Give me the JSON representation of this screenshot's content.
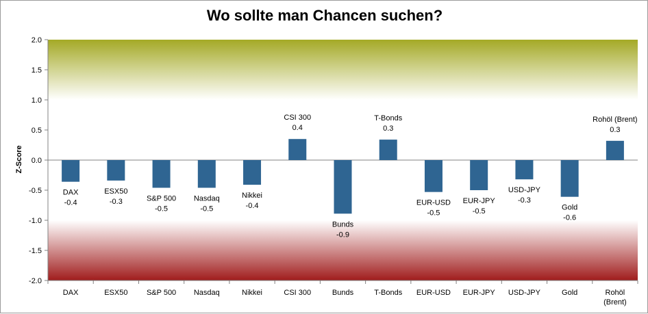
{
  "chart_data": {
    "type": "bar",
    "title": "Wo sollte man Chancen suchen?",
    "xlabel": "",
    "ylabel": "Z-Score",
    "ylim": [
      -2.0,
      2.0
    ],
    "yticks": [
      "2.0",
      "1.5",
      "1.0",
      "0.5",
      "0.0",
      "-0.5",
      "-1.0",
      "-1.5",
      "-2.0"
    ],
    "categories": [
      "DAX",
      "ESX50",
      "S&P 500",
      "Nasdaq",
      "Nikkei",
      "CSI 300",
      "Bunds",
      "T-Bonds",
      "EUR-USD",
      "EUR-JPY",
      "USD-JPY",
      "Gold",
      "Rohöl (Brent)"
    ],
    "values": [
      -0.36,
      -0.34,
      -0.46,
      -0.46,
      -0.41,
      0.35,
      -0.89,
      0.34,
      -0.53,
      -0.5,
      -0.32,
      -0.61,
      0.32
    ],
    "data_labels": [
      "-0.4",
      "-0.3",
      "-0.5",
      "-0.5",
      "-0.4",
      "0.4",
      "-0.9",
      "0.3",
      "-0.5",
      "-0.5",
      "-0.3",
      "-0.6",
      "0.3"
    ],
    "grid": false,
    "legend": "none",
    "bands": [
      {
        "from": 1.0,
        "to": 2.0,
        "color": "#a4a926",
        "fade_to": "#ffffff"
      },
      {
        "from": -2.0,
        "to": -1.0,
        "color": "#a01c1c",
        "fade_to": "#ffffff"
      }
    ],
    "bar_color": "#2f6592"
  }
}
